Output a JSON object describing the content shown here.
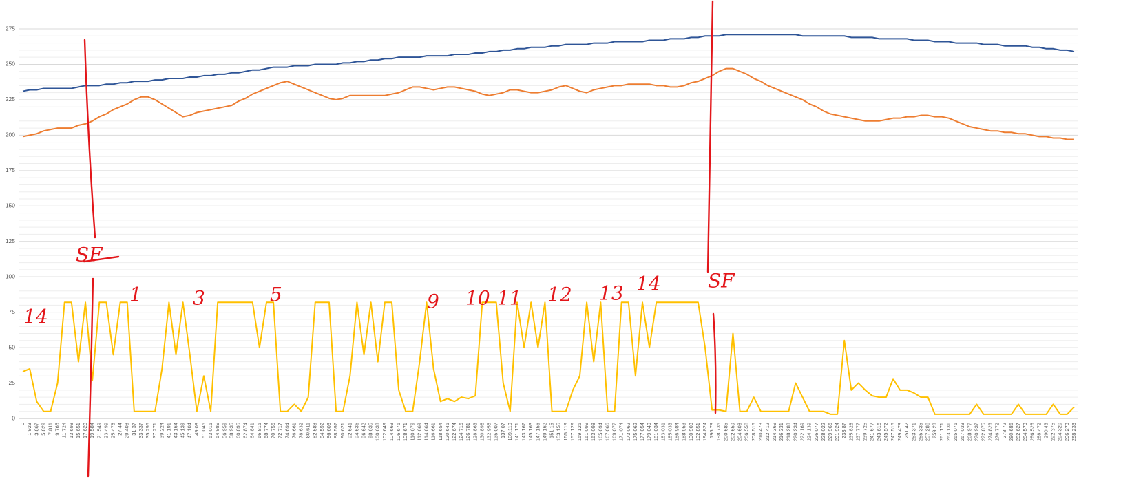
{
  "chart_data": {
    "type": "line",
    "categories": [
      "0",
      "1.923",
      "3.867",
      "5.829",
      "7.811",
      "9.765",
      "11.724",
      "13.698",
      "15.651",
      "17.623",
      "19.584",
      "21.549",
      "23.499",
      "25.478",
      "27.44",
      "29.408",
      "31.37",
      "33.337",
      "35.296",
      "37.271",
      "39.224",
      "41.191",
      "43.164",
      "45.139",
      "47.104",
      "49.08",
      "51.045",
      "53.016",
      "54.989",
      "56.959",
      "58.935",
      "60.895",
      "62.874",
      "64.841",
      "66.815",
      "68.774",
      "70.755",
      "72.717",
      "74.694",
      "76.661",
      "78.632",
      "80.611",
      "82.588",
      "84.592",
      "86.603",
      "88.597",
      "90.621",
      "92.641",
      "94.636",
      "96.642",
      "98.635",
      "100.633",
      "102.649",
      "104.663",
      "106.675",
      "108.671",
      "110.679",
      "112.669",
      "114.664",
      "116.661",
      "118.654",
      "120.646",
      "122.674",
      "124.715",
      "126.781",
      "128.863",
      "130.898",
      "132.955",
      "135.007",
      "137.07",
      "139.119",
      "141.171",
      "143.167",
      "145.163",
      "147.156",
      "149.162",
      "151.15",
      "153.155",
      "155.119",
      "157.129",
      "159.125",
      "161.099",
      "163.098",
      "165.094",
      "167.066",
      "169.077",
      "171.074",
      "173.062",
      "175.062",
      "177.054",
      "179.049",
      "181.034",
      "183.031",
      "185.033",
      "186.984",
      "188.953",
      "190.903",
      "192.851",
      "194.824",
      "196.78",
      "198.735",
      "200.685",
      "202.659",
      "204.608",
      "206.558",
      "208.516",
      "210.473",
      "212.412",
      "214.369",
      "216.331",
      "218.283",
      "220.234",
      "222.169",
      "224.139",
      "226.077",
      "228.022",
      "229.965",
      "231.924",
      "233.87",
      "235.828",
      "237.777",
      "239.725",
      "241.677",
      "243.615",
      "245.572",
      "247.516",
      "249.478",
      "251.42",
      "253.371",
      "255.335",
      "257.288",
      "259.23",
      "261.171",
      "263.131",
      "265.076",
      "267.033",
      "268.977",
      "270.937",
      "272.875",
      "274.823",
      "276.772",
      "278.72",
      "280.685",
      "282.627",
      "284.573",
      "286.528",
      "288.472",
      "290.43",
      "292.375",
      "294.329",
      "296.273",
      "298.233"
    ],
    "series": [
      {
        "color": "#2f5597",
        "values": [
          231,
          232,
          232,
          233,
          233,
          233,
          233,
          233,
          234,
          235,
          235,
          235,
          236,
          236,
          237,
          237,
          238,
          238,
          238,
          239,
          239,
          240,
          240,
          240,
          241,
          241,
          242,
          242,
          243,
          243,
          244,
          244,
          245,
          246,
          246,
          247,
          248,
          248,
          248,
          249,
          249,
          249,
          250,
          250,
          250,
          250,
          251,
          251,
          252,
          252,
          253,
          253,
          254,
          254,
          255,
          255,
          255,
          255,
          256,
          256,
          256,
          256,
          257,
          257,
          257,
          258,
          258,
          259,
          259,
          260,
          260,
          261,
          261,
          262,
          262,
          262,
          263,
          263,
          264,
          264,
          264,
          264,
          265,
          265,
          265,
          266,
          266,
          266,
          266,
          266,
          267,
          267,
          267,
          268,
          268,
          268,
          269,
          269,
          270,
          270,
          270,
          271,
          271,
          271,
          271,
          271,
          271,
          271,
          271,
          271,
          271,
          271,
          270,
          270,
          270,
          270,
          270,
          270,
          270,
          269,
          269,
          269,
          269,
          268,
          268,
          268,
          268,
          268,
          267,
          267,
          267,
          266,
          266,
          266,
          265,
          265,
          265,
          265,
          264,
          264,
          264,
          263,
          263,
          263,
          263,
          262,
          262,
          261,
          261,
          260,
          260,
          259
        ]
      },
      {
        "color": "#ed7d31",
        "values": [
          199,
          200,
          201,
          203,
          204,
          205,
          205,
          205,
          207,
          208,
          210,
          213,
          215,
          218,
          220,
          222,
          225,
          227,
          227,
          225,
          222,
          219,
          216,
          213,
          214,
          216,
          217,
          218,
          219,
          220,
          221,
          224,
          226,
          229,
          231,
          233,
          235,
          237,
          238,
          236,
          234,
          232,
          230,
          228,
          226,
          225,
          226,
          228,
          228,
          228,
          228,
          228,
          228,
          229,
          230,
          232,
          234,
          234,
          233,
          232,
          233,
          234,
          234,
          233,
          232,
          231,
          229,
          228,
          229,
          230,
          232,
          232,
          231,
          230,
          230,
          231,
          232,
          234,
          235,
          233,
          231,
          230,
          232,
          233,
          234,
          235,
          235,
          236,
          236,
          236,
          236,
          235,
          235,
          234,
          234,
          235,
          237,
          238,
          240,
          242,
          245,
          247,
          247,
          245,
          243,
          240,
          238,
          235,
          233,
          231,
          229,
          227,
          225,
          222,
          220,
          217,
          215,
          214,
          213,
          212,
          211,
          210,
          210,
          210,
          211,
          212,
          212,
          213,
          213,
          214,
          214,
          213,
          213,
          212,
          210,
          208,
          206,
          205,
          204,
          203,
          203,
          202,
          202,
          201,
          201,
          200,
          199,
          199,
          198,
          198,
          197,
          197
        ]
      },
      {
        "color": "#ffc000",
        "values": [
          33,
          35,
          12,
          5,
          5,
          25,
          82,
          82,
          40,
          82,
          27,
          82,
          82,
          45,
          82,
          82,
          5,
          5,
          5,
          5,
          35,
          82,
          45,
          82,
          45,
          5,
          30,
          5,
          82,
          82,
          82,
          82,
          82,
          82,
          50,
          82,
          82,
          5,
          5,
          10,
          5,
          15,
          82,
          82,
          82,
          5,
          5,
          30,
          82,
          45,
          82,
          40,
          82,
          82,
          20,
          5,
          5,
          40,
          82,
          35,
          12,
          14,
          12,
          15,
          14,
          16,
          82,
          82,
          82,
          25,
          5,
          82,
          50,
          82,
          50,
          82,
          5,
          5,
          5,
          20,
          30,
          82,
          40,
          82,
          5,
          5,
          82,
          82,
          30,
          82,
          50,
          82,
          82,
          82,
          82,
          82,
          82,
          82,
          50,
          6,
          6,
          5,
          60,
          5,
          5,
          15,
          5,
          5,
          5,
          5,
          5,
          25,
          15,
          5,
          5,
          5,
          3,
          3,
          55,
          20,
          25,
          20,
          16,
          15,
          15,
          28,
          20,
          20,
          18,
          15,
          15,
          3,
          3,
          3,
          3,
          3,
          3,
          10,
          3,
          3,
          3,
          3,
          3,
          10,
          3,
          3,
          3,
          3,
          10,
          3,
          3,
          8
        ]
      }
    ],
    "ylim": [
      0,
      275
    ],
    "yticks": [
      0,
      25,
      50,
      75,
      100,
      125,
      150,
      175,
      200,
      225,
      250,
      275
    ],
    "grid": true,
    "annotations": [
      "SF",
      "14",
      "1",
      "3",
      "5",
      "9",
      "10",
      "11",
      "12",
      "13",
      "14",
      "SF"
    ]
  }
}
